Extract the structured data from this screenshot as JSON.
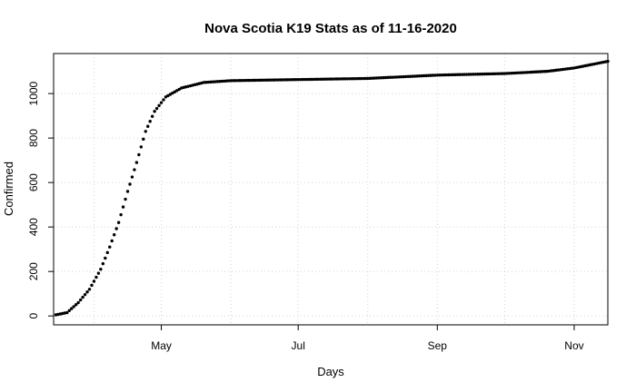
{
  "chart_data": {
    "type": "scatter",
    "title": "Nova Scotia K19 Stats as of 11-16-2020",
    "xlabel": "Days",
    "ylabel": "Confirmed",
    "grid": true,
    "xlim": [
      "2020-03-14",
      "2020-11-16"
    ],
    "ylim": [
      -40,
      1180
    ],
    "x_ticks": [
      {
        "date": "2020-05-01",
        "label": "May"
      },
      {
        "date": "2020-07-01",
        "label": "Jul"
      },
      {
        "date": "2020-09-01",
        "label": "Sep"
      },
      {
        "date": "2020-11-01",
        "label": "Nov"
      }
    ],
    "y_ticks": [
      0,
      200,
      400,
      600,
      800,
      1000
    ],
    "key_points": [
      {
        "date": "2020-03-15",
        "y": 5
      },
      {
        "date": "2020-03-20",
        "y": 15
      },
      {
        "date": "2020-03-25",
        "y": 60
      },
      {
        "date": "2020-03-30",
        "y": 120
      },
      {
        "date": "2020-04-04",
        "y": 210
      },
      {
        "date": "2020-04-08",
        "y": 310
      },
      {
        "date": "2020-04-12",
        "y": 420
      },
      {
        "date": "2020-04-16",
        "y": 560
      },
      {
        "date": "2020-04-20",
        "y": 690
      },
      {
        "date": "2020-04-24",
        "y": 830
      },
      {
        "date": "2020-04-28",
        "y": 920
      },
      {
        "date": "2020-05-03",
        "y": 985
      },
      {
        "date": "2020-05-10",
        "y": 1025
      },
      {
        "date": "2020-05-20",
        "y": 1050
      },
      {
        "date": "2020-06-01",
        "y": 1058
      },
      {
        "date": "2020-07-01",
        "y": 1063
      },
      {
        "date": "2020-08-01",
        "y": 1068
      },
      {
        "date": "2020-09-01",
        "y": 1083
      },
      {
        "date": "2020-10-01",
        "y": 1090
      },
      {
        "date": "2020-10-20",
        "y": 1100
      },
      {
        "date": "2020-11-01",
        "y": 1115
      },
      {
        "date": "2020-11-16",
        "y": 1145
      }
    ],
    "marker_color": "#000000",
    "grid_color": "#d3d3d3"
  }
}
